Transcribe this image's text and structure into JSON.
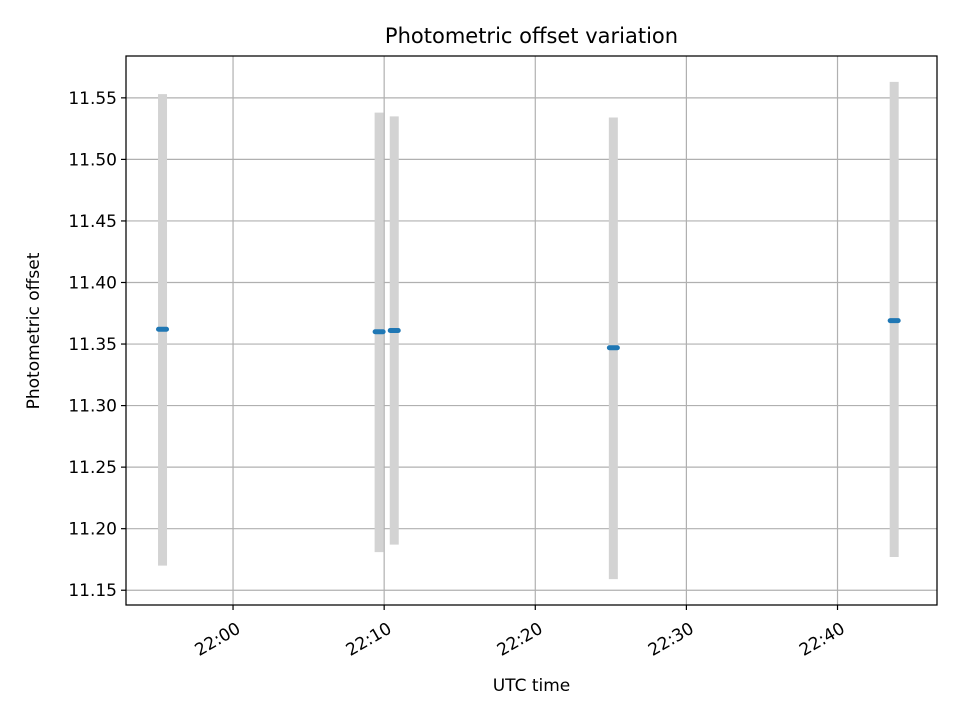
{
  "chart_data": {
    "type": "scatter",
    "title": "Photometric offset variation",
    "xlabel": "UTC time",
    "ylabel": "Photometric offset",
    "grid": true,
    "x_ticks": [
      "22:00",
      "22:10",
      "22:20",
      "22:30",
      "22:40"
    ],
    "y_ticks": [
      "11.15",
      "11.20",
      "11.25",
      "11.30",
      "11.35",
      "11.40",
      "11.45",
      "11.50",
      "11.55"
    ],
    "xlim": [
      "21:52:55",
      "22:46:35"
    ],
    "ylim": [
      11.138,
      11.584
    ],
    "colors": {
      "point": "#1f77b4",
      "errorbar": "#d3d3d3",
      "grid": "#b0b0b0"
    },
    "series": [
      {
        "x": [
          "21:55:20",
          "22:09:40",
          "22:10:40",
          "22:25:10",
          "22:43:45"
        ],
        "y": [
          11.362,
          11.36,
          11.361,
          11.347,
          11.369
        ],
        "yerr_low": [
          11.17,
          11.181,
          11.187,
          11.159,
          11.177
        ],
        "yerr_high": [
          11.553,
          11.538,
          11.535,
          11.534,
          11.563
        ]
      }
    ]
  }
}
